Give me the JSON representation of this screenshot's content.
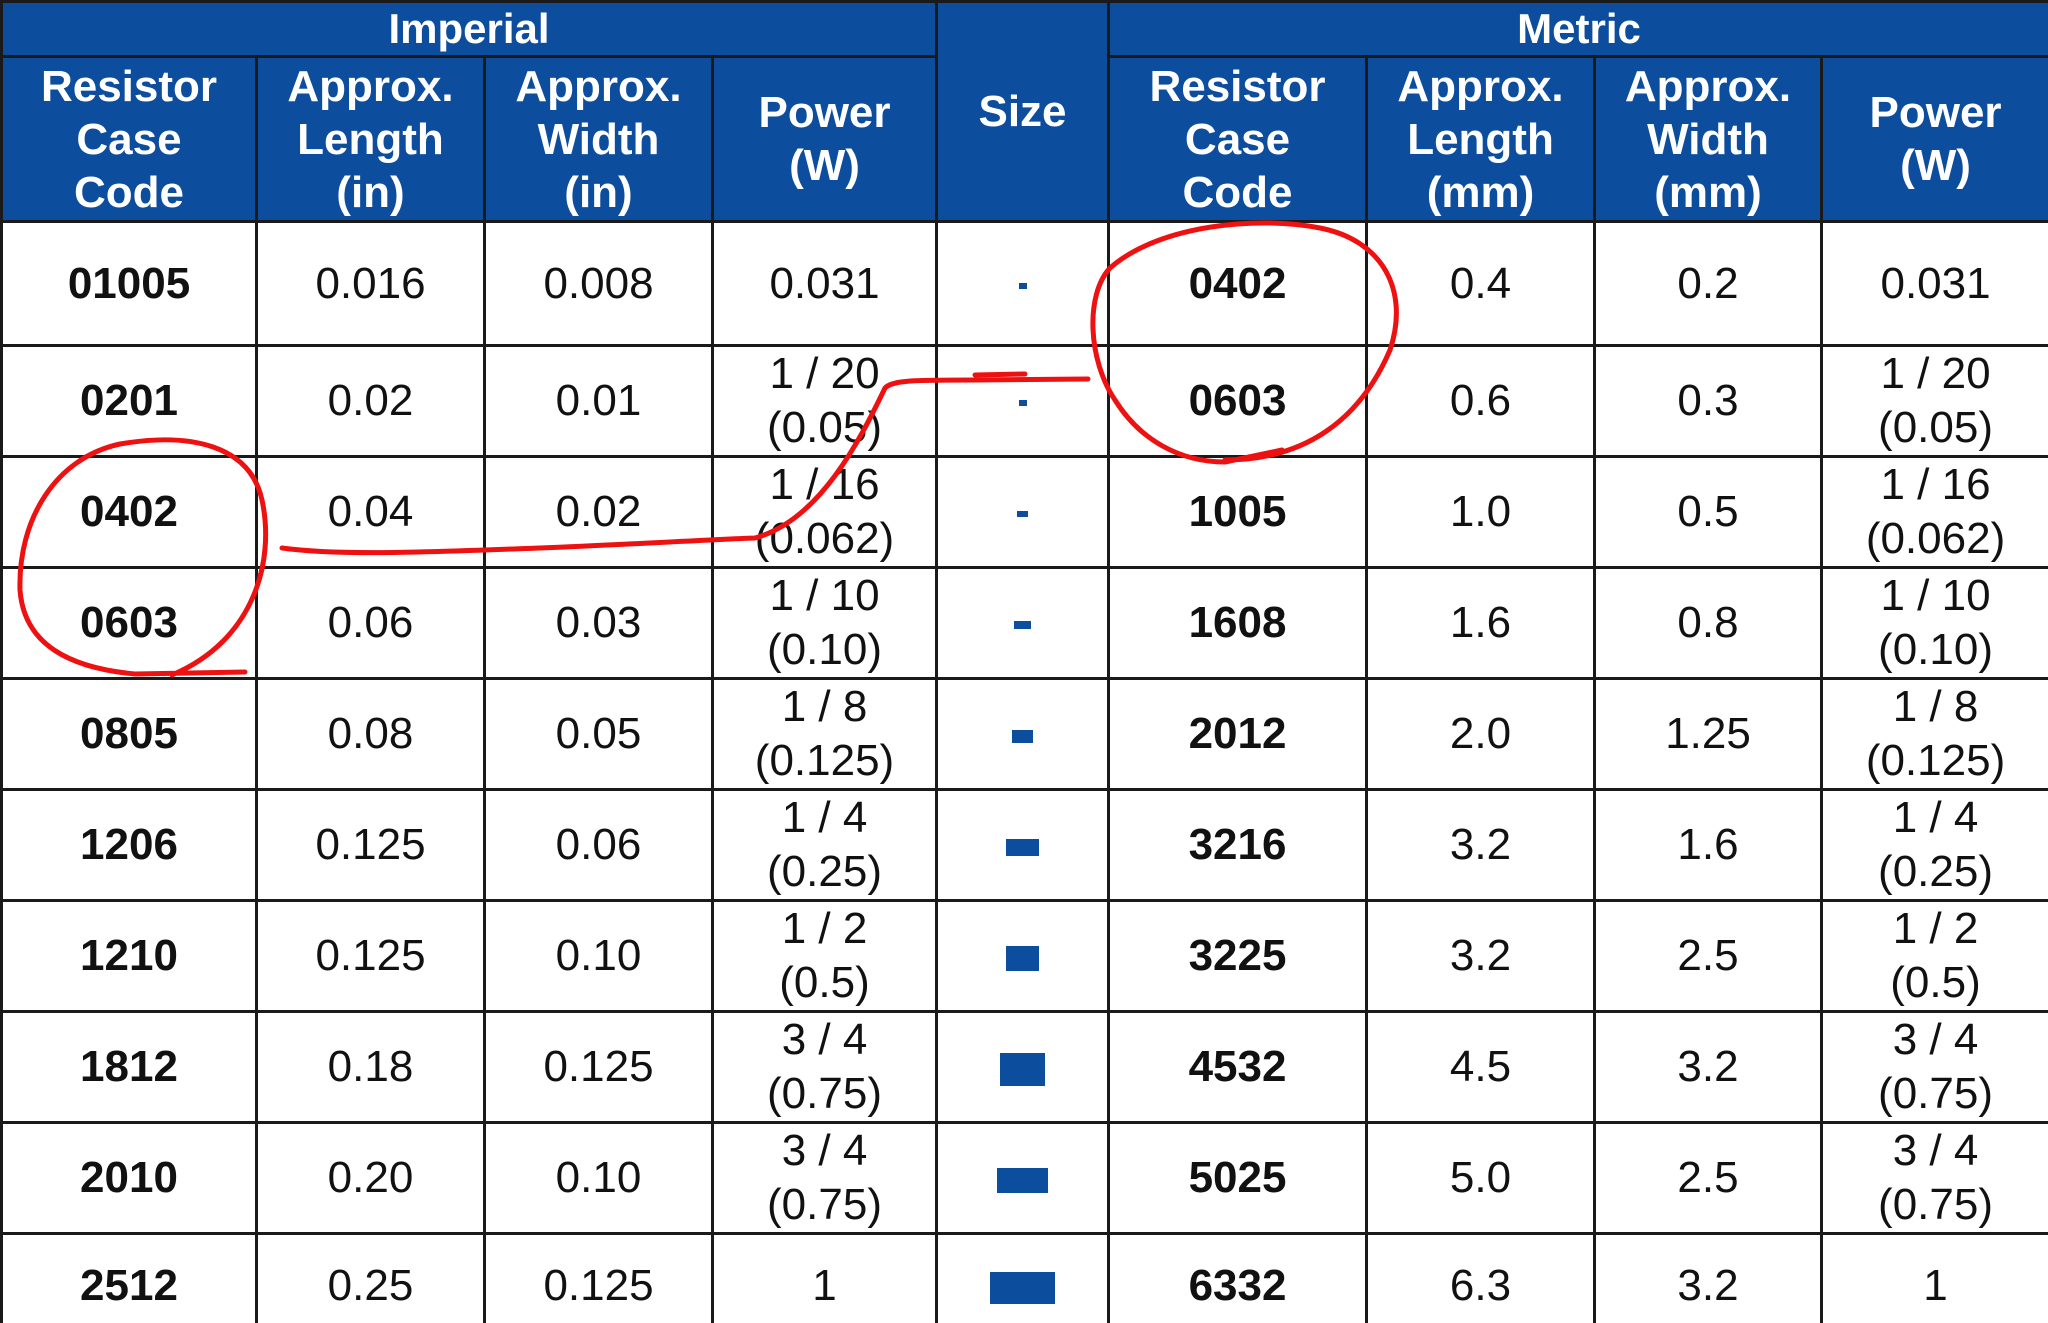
{
  "headers": {
    "imperial_group": "Imperial",
    "metric_group": "Metric",
    "size": "Size",
    "imperial": [
      [
        "Resistor",
        "Case",
        "Code"
      ],
      [
        "Approx.",
        "Length",
        "(in)"
      ],
      [
        "Approx.",
        "Width",
        "(in)"
      ],
      [
        "Power",
        "(W)"
      ]
    ],
    "metric": [
      [
        "Resistor",
        "Case",
        "Code"
      ],
      [
        "Approx.",
        "Length",
        "(mm)"
      ],
      [
        "Approx.",
        "Width",
        "(mm)"
      ],
      [
        "Power",
        "(W)"
      ]
    ]
  },
  "rows": [
    {
      "imp_code": "01005",
      "imp_len": "0.016",
      "imp_wid": "0.008",
      "imp_pow": [
        "0.031"
      ],
      "met_code": "0402",
      "met_len": "0.4",
      "met_wid": "0.2",
      "met_pow": [
        "0.031"
      ],
      "size_l": 0.4,
      "size_w": 0.2
    },
    {
      "imp_code": "0201",
      "imp_len": "0.02",
      "imp_wid": "0.01",
      "imp_pow": [
        "1 / 20",
        "(0.05)"
      ],
      "met_code": "0603",
      "met_len": "0.6",
      "met_wid": "0.3",
      "met_pow": [
        "1 / 20",
        "(0.05)"
      ],
      "size_l": 0.6,
      "size_w": 0.3
    },
    {
      "imp_code": "0402",
      "imp_len": "0.04",
      "imp_wid": "0.02",
      "imp_pow": [
        "1 / 16",
        "(0.062)"
      ],
      "met_code": "1005",
      "met_len": "1.0",
      "met_wid": "0.5",
      "met_pow": [
        "1 / 16",
        "(0.062)"
      ],
      "size_l": 1.0,
      "size_w": 0.5
    },
    {
      "imp_code": "0603",
      "imp_len": "0.06",
      "imp_wid": "0.03",
      "imp_pow": [
        "1 / 10",
        "(0.10)"
      ],
      "met_code": "1608",
      "met_len": "1.6",
      "met_wid": "0.8",
      "met_pow": [
        "1 / 10",
        "(0.10)"
      ],
      "size_l": 1.6,
      "size_w": 0.8
    },
    {
      "imp_code": "0805",
      "imp_len": "0.08",
      "imp_wid": "0.05",
      "imp_pow": [
        "1 / 8",
        "(0.125)"
      ],
      "met_code": "2012",
      "met_len": "2.0",
      "met_wid": "1.25",
      "met_pow": [
        "1 / 8",
        "(0.125)"
      ],
      "size_l": 2.0,
      "size_w": 1.25
    },
    {
      "imp_code": "1206",
      "imp_len": "0.125",
      "imp_wid": "0.06",
      "imp_pow": [
        "1 / 4",
        "(0.25)"
      ],
      "met_code": "3216",
      "met_len": "3.2",
      "met_wid": "1.6",
      "met_pow": [
        "1 / 4",
        "(0.25)"
      ],
      "size_l": 3.2,
      "size_w": 1.6
    },
    {
      "imp_code": "1210",
      "imp_len": "0.125",
      "imp_wid": "0.10",
      "imp_pow": [
        "1 / 2",
        "(0.5)"
      ],
      "met_code": "3225",
      "met_len": "3.2",
      "met_wid": "2.5",
      "met_pow": [
        "1 / 2",
        "(0.5)"
      ],
      "size_l": 3.2,
      "size_w": 2.5
    },
    {
      "imp_code": "1812",
      "imp_len": "0.18",
      "imp_wid": "0.125",
      "imp_pow": [
        "3 / 4",
        "(0.75)"
      ],
      "met_code": "4532",
      "met_len": "4.5",
      "met_wid": "3.2",
      "met_pow": [
        "3 / 4",
        "(0.75)"
      ],
      "size_l": 4.5,
      "size_w": 3.2
    },
    {
      "imp_code": "2010",
      "imp_len": "0.20",
      "imp_wid": "0.10",
      "imp_pow": [
        "3 / 4",
        "(0.75)"
      ],
      "met_code": "5025",
      "met_len": "5.0",
      "met_wid": "2.5",
      "met_pow": [
        "3 / 4",
        "(0.75)"
      ],
      "size_l": 5.0,
      "size_w": 2.5
    },
    {
      "imp_code": "2512",
      "imp_len": "0.25",
      "imp_wid": "0.125",
      "imp_pow": [
        "1"
      ],
      "met_code": "6332",
      "met_len": "6.3",
      "met_wid": "3.2",
      "met_pow": [
        "1"
      ],
      "size_l": 6.3,
      "size_w": 3.2
    }
  ],
  "colors": {
    "header_bg": "#0d4d9e",
    "chip": "#0d4d9e",
    "annotation": "#ee1111"
  }
}
